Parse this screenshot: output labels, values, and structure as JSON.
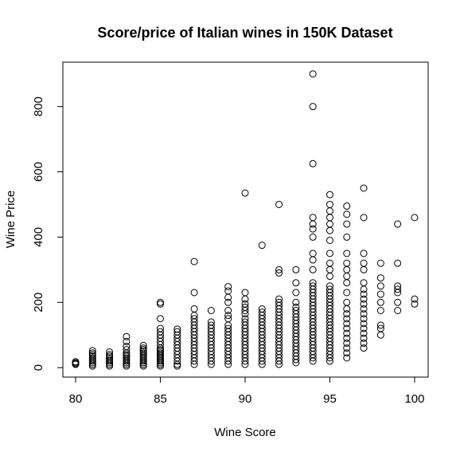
{
  "chart_data": {
    "type": "scatter",
    "title": "Score/price of Italian wines in 150K Dataset",
    "x_label": "Wine Score",
    "y_label": "Wine Price",
    "xlim": [
      79.25,
      100.8
    ],
    "ylim": [
      -29,
      936
    ],
    "xticks": [
      80,
      85,
      90,
      95,
      100
    ],
    "yticks": [
      0,
      200,
      400,
      600,
      800
    ],
    "color": "#000000",
    "x": [
      80,
      80,
      80,
      80,
      81,
      81,
      81,
      81,
      81,
      81,
      81,
      81,
      81,
      81,
      82,
      82,
      82,
      82,
      82,
      82,
      82,
      82,
      82,
      83,
      83,
      83,
      83,
      83,
      83,
      83,
      83,
      83,
      83,
      83,
      83,
      83,
      84,
      84,
      84,
      84,
      84,
      84,
      84,
      84,
      84,
      84,
      84,
      84,
      84,
      85,
      85,
      85,
      85,
      85,
      85,
      85,
      85,
      85,
      85,
      85,
      85,
      85,
      85,
      85,
      85,
      85,
      85,
      85,
      85,
      85,
      86,
      86,
      86,
      86,
      86,
      86,
      86,
      86,
      86,
      86,
      86,
      86,
      86,
      87,
      87,
      87,
      87,
      87,
      87,
      87,
      87,
      87,
      87,
      87,
      87,
      87,
      87,
      87,
      87,
      87,
      87,
      87,
      88,
      88,
      88,
      88,
      88,
      88,
      88,
      88,
      88,
      88,
      88,
      88,
      88,
      88,
      88,
      89,
      89,
      89,
      89,
      89,
      89,
      89,
      89,
      89,
      89,
      89,
      89,
      89,
      89,
      89,
      89,
      89,
      89,
      89,
      89,
      90,
      90,
      90,
      90,
      90,
      90,
      90,
      90,
      90,
      90,
      90,
      90,
      90,
      90,
      90,
      90,
      90,
      90,
      90,
      90,
      90,
      90,
      91,
      91,
      91,
      91,
      91,
      91,
      91,
      91,
      91,
      91,
      91,
      91,
      91,
      91,
      91,
      91,
      91,
      91,
      91,
      92,
      92,
      92,
      92,
      92,
      92,
      92,
      92,
      92,
      92,
      92,
      92,
      92,
      92,
      92,
      92,
      92,
      92,
      92,
      92,
      92,
      92,
      92,
      92,
      93,
      93,
      93,
      93,
      93,
      93,
      93,
      93,
      93,
      93,
      93,
      93,
      93,
      93,
      93,
      93,
      93,
      93,
      93,
      93,
      93,
      93,
      94,
      94,
      94,
      94,
      94,
      94,
      94,
      94,
      94,
      94,
      94,
      94,
      94,
      94,
      94,
      94,
      94,
      94,
      94,
      94,
      94,
      94,
      94,
      94,
      94,
      94,
      94,
      94,
      94,
      94,
      94,
      94,
      94,
      94,
      94,
      95,
      95,
      95,
      95,
      95,
      95,
      95,
      95,
      95,
      95,
      95,
      95,
      95,
      95,
      95,
      95,
      95,
      95,
      95,
      95,
      95,
      95,
      95,
      95,
      95,
      95,
      95,
      95,
      95,
      95,
      95,
      95,
      95,
      95,
      95,
      96,
      96,
      96,
      96,
      96,
      96,
      96,
      96,
      96,
      96,
      96,
      96,
      96,
      96,
      96,
      96,
      96,
      96,
      96,
      96,
      96,
      96,
      97,
      97,
      97,
      97,
      97,
      97,
      97,
      97,
      97,
      97,
      97,
      97,
      97,
      97,
      97,
      97,
      97,
      97,
      97,
      98,
      98,
      98,
      98,
      98,
      98,
      98,
      98,
      98,
      99,
      99,
      99,
      99,
      99,
      99,
      99,
      100,
      100,
      100
    ],
    "y": [
      10,
      12,
      15,
      18,
      5,
      10,
      15,
      20,
      25,
      30,
      35,
      40,
      45,
      52,
      5,
      10,
      15,
      20,
      25,
      30,
      35,
      40,
      48,
      5,
      10,
      15,
      20,
      25,
      30,
      35,
      40,
      45,
      55,
      65,
      80,
      95,
      5,
      10,
      15,
      20,
      25,
      30,
      35,
      40,
      45,
      50,
      55,
      60,
      68,
      5,
      10,
      15,
      20,
      25,
      30,
      35,
      40,
      45,
      50,
      55,
      60,
      70,
      80,
      90,
      100,
      110,
      120,
      150,
      195,
      200,
      5,
      10,
      20,
      30,
      40,
      50,
      60,
      70,
      80,
      90,
      100,
      110,
      118,
      10,
      20,
      30,
      40,
      50,
      60,
      70,
      80,
      90,
      100,
      110,
      120,
      130,
      140,
      150,
      160,
      180,
      230,
      325,
      10,
      20,
      30,
      40,
      50,
      60,
      70,
      80,
      90,
      100,
      110,
      120,
      130,
      140,
      175,
      10,
      20,
      30,
      40,
      50,
      60,
      70,
      80,
      90,
      100,
      110,
      120,
      130,
      150,
      160,
      175,
      200,
      215,
      235,
      248,
      10,
      20,
      30,
      40,
      50,
      60,
      70,
      80,
      90,
      100,
      110,
      120,
      130,
      140,
      150,
      165,
      175,
      185,
      195,
      210,
      230,
      535,
      10,
      20,
      30,
      40,
      50,
      60,
      70,
      80,
      90,
      100,
      110,
      120,
      130,
      140,
      150,
      160,
      170,
      180,
      375,
      10,
      20,
      30,
      40,
      50,
      60,
      70,
      80,
      90,
      100,
      110,
      120,
      130,
      140,
      150,
      160,
      170,
      180,
      190,
      200,
      210,
      290,
      300,
      500,
      15,
      25,
      35,
      45,
      55,
      65,
      75,
      85,
      95,
      105,
      115,
      125,
      135,
      145,
      155,
      165,
      175,
      185,
      200,
      230,
      260,
      300,
      20,
      30,
      40,
      50,
      60,
      70,
      80,
      90,
      100,
      110,
      120,
      130,
      140,
      150,
      160,
      170,
      180,
      190,
      200,
      210,
      220,
      230,
      240,
      250,
      260,
      300,
      330,
      350,
      400,
      425,
      440,
      460,
      625,
      800,
      900,
      20,
      30,
      40,
      50,
      60,
      70,
      80,
      90,
      100,
      110,
      120,
      130,
      140,
      150,
      160,
      170,
      180,
      190,
      200,
      210,
      220,
      230,
      240,
      250,
      280,
      300,
      320,
      350,
      390,
      420,
      440,
      460,
      480,
      500,
      530,
      30,
      45,
      60,
      75,
      90,
      105,
      120,
      135,
      150,
      165,
      180,
      200,
      230,
      260,
      280,
      300,
      320,
      350,
      400,
      440,
      470,
      495,
      60,
      75,
      90,
      105,
      120,
      135,
      150,
      165,
      180,
      195,
      210,
      225,
      240,
      260,
      300,
      320,
      350,
      460,
      550,
      100,
      120,
      130,
      175,
      200,
      225,
      250,
      275,
      320,
      175,
      200,
      230,
      240,
      250,
      320,
      440,
      195,
      210,
      460
    ]
  }
}
